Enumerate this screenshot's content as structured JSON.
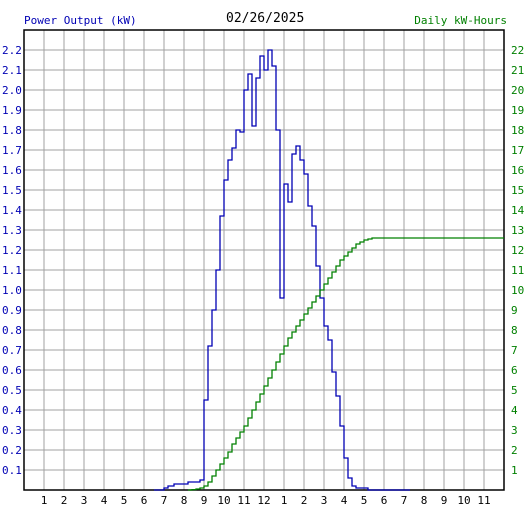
{
  "header": {
    "left_title": "Power Output (kW)",
    "date": "02/26/2025",
    "right_title": "Daily kW-Hours"
  },
  "colors": {
    "power": "#0000b4",
    "energy": "#008000",
    "grid": "#a0a0a0",
    "frame": "#000000",
    "date": "#000000"
  },
  "chart_data": {
    "type": "line",
    "title": "02/26/2025",
    "grid": true,
    "x_tick_labels": [
      "1",
      "2",
      "3",
      "4",
      "5",
      "6",
      "7",
      "8",
      "9",
      "10",
      "11",
      "12",
      "1",
      "2",
      "3",
      "4",
      "5",
      "6",
      "7",
      "8",
      "9",
      "10",
      "11"
    ],
    "left_axis": {
      "label": "Power Output (kW)",
      "range": [
        0,
        2.3
      ],
      "ticks": [
        "0.1",
        "0.2",
        "0.3",
        "0.4",
        "0.5",
        "0.6",
        "0.7",
        "0.8",
        "0.9",
        "1.0",
        "1.1",
        "1.2",
        "1.3",
        "1.4",
        "1.5",
        "1.6",
        "1.7",
        "1.8",
        "1.9",
        "2.0",
        "2.1",
        "2.2"
      ]
    },
    "right_axis": {
      "label": "Daily kW-Hours",
      "range": [
        0,
        23
      ],
      "ticks": [
        "1",
        "2",
        "3",
        "4",
        "5",
        "6",
        "7",
        "8",
        "9",
        "10",
        "11",
        "12",
        "13",
        "14",
        "15",
        "16",
        "17",
        "18",
        "19",
        "20",
        "21",
        "22"
      ]
    },
    "x_range": [
      0,
      24
    ],
    "series": [
      {
        "name": "Power Output (kW)",
        "axis": "left",
        "x": [
          6.5,
          7.0,
          7.2,
          7.5,
          7.8,
          8.0,
          8.2,
          8.5,
          8.8,
          9.0,
          9.2,
          9.4,
          9.6,
          9.8,
          10.0,
          10.2,
          10.4,
          10.6,
          10.8,
          11.0,
          11.2,
          11.4,
          11.6,
          11.8,
          12.0,
          12.2,
          12.4,
          12.6,
          12.8,
          13.0,
          13.2,
          13.4,
          13.6,
          13.8,
          14.0,
          14.2,
          14.4,
          14.6,
          14.8,
          15.0,
          15.2,
          15.4,
          15.6,
          15.8,
          16.0,
          16.2,
          16.4,
          16.6,
          16.8,
          17.0,
          17.2,
          17.4,
          17.6,
          17.8,
          18.0,
          18.2,
          18.5,
          19.0,
          19.3
        ],
        "y": [
          0.0,
          0.01,
          0.02,
          0.03,
          0.03,
          0.03,
          0.04,
          0.04,
          0.05,
          0.45,
          0.72,
          0.9,
          1.1,
          1.37,
          1.55,
          1.65,
          1.71,
          1.8,
          1.79,
          2.0,
          2.08,
          1.82,
          2.06,
          2.17,
          2.1,
          2.2,
          2.12,
          1.8,
          0.96,
          1.53,
          1.44,
          1.68,
          1.72,
          1.65,
          1.58,
          1.42,
          1.32,
          1.12,
          0.96,
          0.82,
          0.75,
          0.59,
          0.47,
          0.32,
          0.16,
          0.06,
          0.02,
          0.01,
          0.01,
          0.01,
          0.0,
          0.0,
          0.0,
          0.0,
          0.0,
          0.0,
          0.0,
          0.0,
          0.0
        ]
      },
      {
        "name": "Daily kW-Hours",
        "axis": "right",
        "x": [
          8.2,
          8.4,
          8.6,
          8.8,
          9.0,
          9.2,
          9.4,
          9.6,
          9.8,
          10.0,
          10.2,
          10.4,
          10.6,
          10.8,
          11.0,
          11.2,
          11.4,
          11.6,
          11.8,
          12.0,
          12.2,
          12.4,
          12.6,
          12.8,
          13.0,
          13.2,
          13.4,
          13.6,
          13.8,
          14.0,
          14.2,
          14.4,
          14.6,
          14.8,
          15.0,
          15.2,
          15.4,
          15.6,
          15.8,
          16.0,
          16.2,
          16.4,
          16.6,
          16.8,
          17.0,
          17.2,
          17.4,
          17.6,
          18.0,
          19.0,
          20.0,
          21.0,
          22.0,
          23.0,
          24.0
        ],
        "y": [
          0.0,
          0.02,
          0.05,
          0.1,
          0.2,
          0.4,
          0.7,
          1.0,
          1.3,
          1.6,
          1.9,
          2.3,
          2.6,
          2.9,
          3.2,
          3.6,
          4.0,
          4.4,
          4.8,
          5.2,
          5.6,
          6.0,
          6.4,
          6.8,
          7.2,
          7.6,
          7.9,
          8.2,
          8.5,
          8.8,
          9.1,
          9.4,
          9.7,
          10.0,
          10.3,
          10.6,
          10.9,
          11.2,
          11.5,
          11.7,
          11.9,
          12.1,
          12.3,
          12.4,
          12.5,
          12.55,
          12.6,
          12.6,
          12.6,
          12.6,
          12.6,
          12.6,
          12.6,
          12.6,
          12.6
        ]
      }
    ]
  }
}
